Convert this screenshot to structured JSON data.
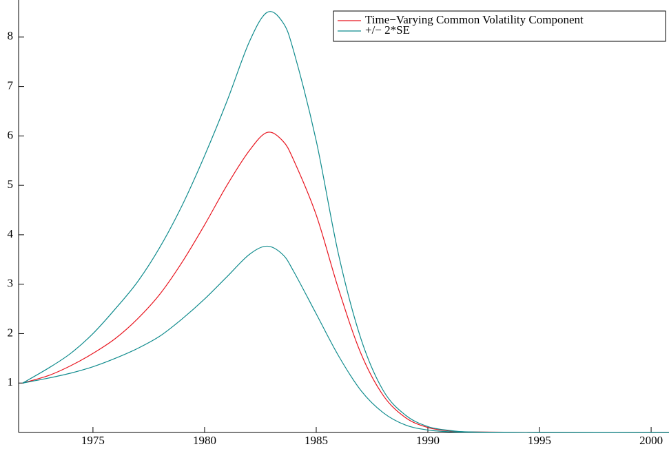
{
  "chart_data": {
    "type": "line",
    "x": [
      1971.85,
      1973,
      1974,
      1975,
      1976,
      1977,
      1978,
      1979,
      1980,
      1981,
      1982,
      1982.8,
      1983.5,
      1984,
      1985,
      1986,
      1987,
      1988,
      1989,
      1990,
      1991,
      1992,
      1995,
      2000.8
    ],
    "series": [
      {
        "name": "Time−Varying Common Volatility Component",
        "color": "#e8141e",
        "values": [
          1.0,
          1.15,
          1.35,
          1.6,
          1.9,
          2.3,
          2.8,
          3.45,
          4.2,
          5.0,
          5.7,
          6.07,
          5.9,
          5.5,
          4.4,
          2.9,
          1.6,
          0.75,
          0.3,
          0.1,
          0.03,
          0.01,
          0,
          0
        ]
      },
      {
        "name": "+/− 2*SE",
        "color": "#0f8b8d",
        "values": [
          1.0,
          1.3,
          1.6,
          2.0,
          2.5,
          3.05,
          3.75,
          4.6,
          5.6,
          6.7,
          7.9,
          8.5,
          8.3,
          7.7,
          5.9,
          3.6,
          1.9,
          0.85,
          0.35,
          0.12,
          0.04,
          0.01,
          0,
          0
        ]
      },
      {
        "color": "#0f8b8d",
        "values": [
          1.0,
          1.1,
          1.2,
          1.33,
          1.5,
          1.7,
          1.95,
          2.3,
          2.7,
          3.15,
          3.6,
          3.77,
          3.6,
          3.25,
          2.4,
          1.55,
          0.85,
          0.4,
          0.15,
          0.05,
          0.015,
          0.005,
          0,
          0
        ]
      }
    ],
    "xlim": [
      1971.67,
      2000.8
    ],
    "xticks": [
      1975,
      1980,
      1985,
      1990,
      1995,
      2000
    ],
    "ylim": [
      0,
      8.75
    ],
    "yticks": [
      1,
      2,
      3,
      4,
      5,
      6,
      7,
      8
    ],
    "legend": "upper right"
  }
}
